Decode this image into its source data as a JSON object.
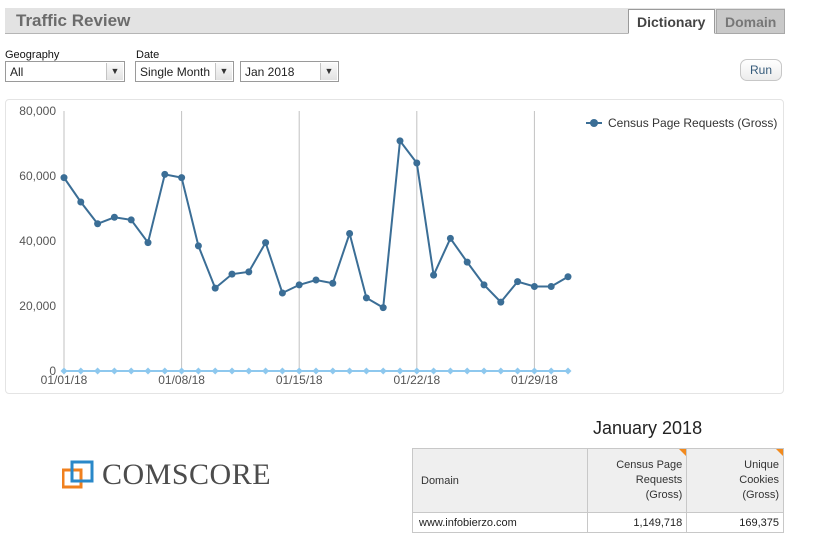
{
  "header": {
    "title": "Traffic Review"
  },
  "tabs": [
    {
      "label": "Dictionary",
      "active": true
    },
    {
      "label": "Domain",
      "active": false
    }
  ],
  "controls": {
    "geography_label": "Geography",
    "geography_value": "All",
    "date_label": "Date",
    "date_mode_value": "Single Month",
    "month_value": "Jan 2018",
    "run_label": "Run"
  },
  "chart_data": {
    "type": "line",
    "series": [
      {
        "name": "Census Page Requests (Gross)",
        "color": "#3b6e96",
        "values": [
          59500,
          52000,
          45300,
          47300,
          46500,
          39500,
          60500,
          59500,
          38500,
          25500,
          29800,
          30500,
          39500,
          24000,
          26500,
          28000,
          27000,
          42300,
          22500,
          19500,
          70800,
          64000,
          29500,
          40800,
          33500,
          26500,
          21200,
          27500,
          26000,
          26000,
          29000
        ]
      },
      {
        "name": "",
        "color": "#8ec8ee",
        "values": [
          0,
          0,
          0,
          0,
          0,
          0,
          0,
          0,
          0,
          0,
          0,
          0,
          0,
          0,
          0,
          0,
          0,
          0,
          0,
          0,
          0,
          0,
          0,
          0,
          0,
          0,
          0,
          0,
          0,
          0,
          0
        ]
      }
    ],
    "x_start": "2018-01-01",
    "x_tick_labels": [
      "01/01/18",
      "01/08/18",
      "01/15/18",
      "01/22/18",
      "01/29/18"
    ],
    "y_tick_labels": [
      "0",
      "20,000",
      "40,000",
      "60,000",
      "80,000"
    ],
    "ylim": [
      0,
      80000
    ],
    "grid": "vertical",
    "legend": "top-right"
  },
  "logo": {
    "text": "COMSCORE",
    "mark": "."
  },
  "table": {
    "title": "January 2018",
    "headers": {
      "domain": "Domain",
      "requests": [
        "Census Page",
        "Requests",
        "(Gross)"
      ],
      "cookies": [
        "Unique",
        "Cookies",
        "(Gross)"
      ]
    },
    "rows": [
      {
        "domain": "www.infobierzo.com",
        "requests": "1,149,718",
        "cookies": "169,375"
      }
    ],
    "accent_color": "#f28a1d"
  }
}
